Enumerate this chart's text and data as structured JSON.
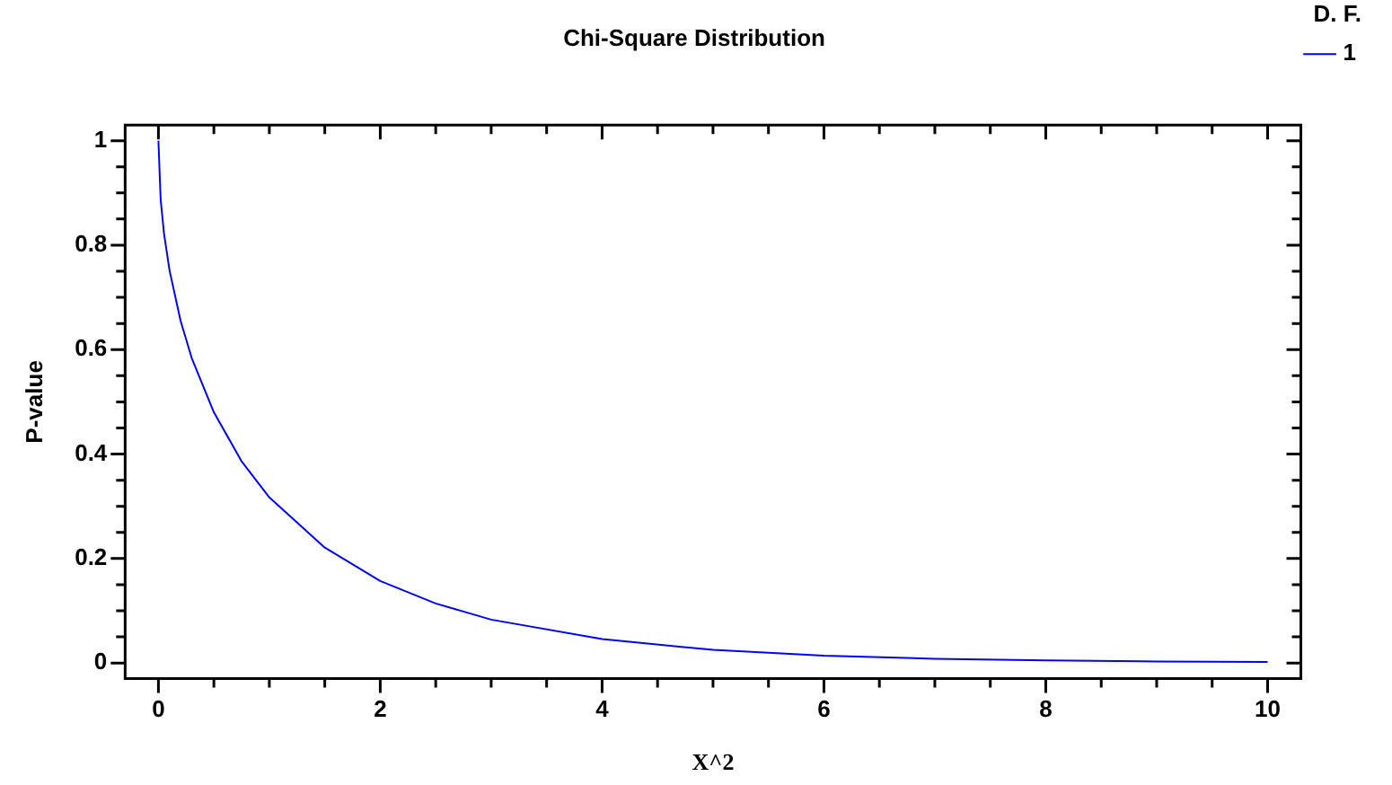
{
  "chart_data": {
    "type": "line",
    "title": "Chi-Square Distribution",
    "xlabel": "X^2",
    "ylabel": "P-value",
    "legend_title": "D. F.",
    "legend": "top right",
    "grid": false,
    "marker": "none",
    "line_style": "solid",
    "xlim": [
      -0.3,
      10.3
    ],
    "ylim": [
      -0.03,
      1.03
    ],
    "xticks": [
      0,
      {
        "value": 0.5,
        "label": null
      },
      2,
      {
        "value": 1,
        "label": null
      },
      {
        "value": 1.5,
        "label": null
      },
      {
        "value": 2.5,
        "label": null
      },
      {
        "value": 3,
        "label": null
      },
      {
        "value": 3.5,
        "label": null
      },
      4,
      {
        "value": 4.5,
        "label": null
      },
      {
        "value": 5,
        "label": null
      },
      {
        "value": 5.5,
        "label": null
      },
      6,
      {
        "value": 6.5,
        "label": null
      },
      {
        "value": 7,
        "label": null
      },
      {
        "value": 7.5,
        "label": null
      },
      8,
      {
        "value": 8.5,
        "label": null
      },
      {
        "value": 9,
        "label": null
      },
      {
        "value": 9.5,
        "label": null
      },
      10
    ],
    "yticks": [
      0,
      {
        "value": 0.05,
        "label": null
      },
      {
        "value": 0.1,
        "label": null
      },
      {
        "value": 0.15,
        "label": null
      },
      0.2,
      {
        "value": 0.25,
        "label": null
      },
      {
        "value": 0.3,
        "label": null
      },
      {
        "value": 0.35,
        "label": null
      },
      0.4,
      {
        "value": 0.45,
        "label": null
      },
      {
        "value": 0.5,
        "label": null
      },
      {
        "value": 0.55,
        "label": null
      },
      0.6,
      {
        "value": 0.65,
        "label": null
      },
      {
        "value": 0.7,
        "label": null
      },
      {
        "value": 0.75,
        "label": null
      },
      0.8,
      {
        "value": 0.85,
        "label": null
      },
      {
        "value": 0.9,
        "label": null
      },
      {
        "value": 0.95,
        "label": null
      },
      1
    ],
    "series": [
      {
        "name": "1",
        "color": "#0000ff",
        "x": [
          0,
          0.02,
          0.05,
          0.1,
          0.2,
          0.3,
          0.5,
          0.75,
          1,
          1.5,
          2,
          2.5,
          3,
          4,
          5,
          6,
          7,
          8,
          9,
          10
        ],
        "values": [
          1,
          0.888,
          0.823,
          0.752,
          0.655,
          0.584,
          0.48,
          0.386,
          0.317,
          0.221,
          0.157,
          0.114,
          0.083,
          0.046,
          0.025,
          0.014,
          0.008,
          0.005,
          0.003,
          0.002
        ]
      }
    ]
  }
}
